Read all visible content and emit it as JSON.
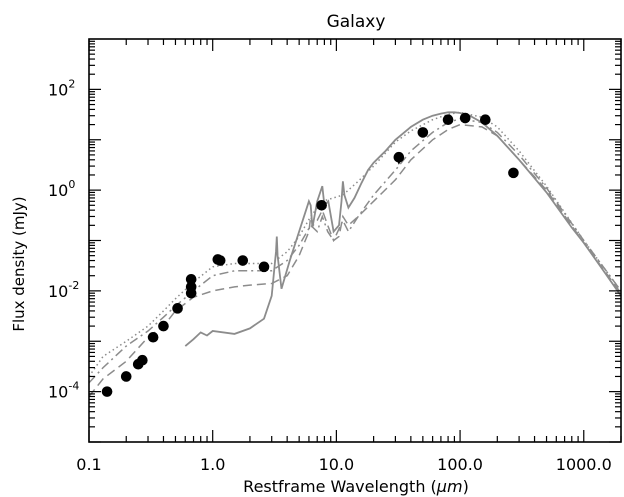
{
  "chart_data": {
    "type": "scatter",
    "title": "Galaxy",
    "xlabel": "Restframe Wavelength (μm)",
    "xlabel_prefix": "Restframe Wavelength (",
    "xlabel_unit": "μm",
    "xlabel_suffix": ")",
    "ylabel": "Flux density (mJy)",
    "xscale": "log",
    "yscale": "log",
    "xlim": [
      0.1,
      2000
    ],
    "ylim": [
      1e-05,
      1000
    ],
    "x_tick_labels": [
      {
        "value": 0.1,
        "label": "0.1"
      },
      {
        "value": 1,
        "label": "1.0"
      },
      {
        "value": 10,
        "label": "10.0"
      },
      {
        "value": 100,
        "label": "100.0"
      },
      {
        "value": 1000,
        "label": "1000.0"
      }
    ],
    "y_tick_labels": [
      {
        "value": 0.0001,
        "base": "10",
        "exp": "-4"
      },
      {
        "value": 0.01,
        "base": "10",
        "exp": "-2"
      },
      {
        "value": 1,
        "base": "10",
        "exp": "0"
      },
      {
        "value": 100,
        "base": "10",
        "exp": "2"
      }
    ],
    "grid": false,
    "legend": "none",
    "points": [
      {
        "x": 0.14,
        "y": 0.0001
      },
      {
        "x": 0.2,
        "y": 0.0002
      },
      {
        "x": 0.25,
        "y": 0.00035
      },
      {
        "x": 0.27,
        "y": 0.00042
      },
      {
        "x": 0.33,
        "y": 0.0012
      },
      {
        "x": 0.4,
        "y": 0.002
      },
      {
        "x": 0.52,
        "y": 0.0045
      },
      {
        "x": 0.67,
        "y": 0.009
      },
      {
        "x": 0.67,
        "y": 0.012
      },
      {
        "x": 0.67,
        "y": 0.017
      },
      {
        "x": 1.1,
        "y": 0.042
      },
      {
        "x": 1.15,
        "y": 0.04
      },
      {
        "x": 1.75,
        "y": 0.04
      },
      {
        "x": 2.6,
        "y": 0.03
      },
      {
        "x": 7.6,
        "y": 0.5
      },
      {
        "x": 32,
        "y": 4.5
      },
      {
        "x": 50,
        "y": 14
      },
      {
        "x": 80,
        "y": 25
      },
      {
        "x": 110,
        "y": 27
      },
      {
        "x": 160,
        "y": 25
      },
      {
        "x": 270,
        "y": 2.2
      }
    ],
    "upper_limits": [
      {
        "x": 32,
        "y": 3.5
      }
    ],
    "series": [
      {
        "style": "solid",
        "x": [
          0.6,
          0.7,
          0.8,
          0.9,
          1.0,
          1.5,
          2.0,
          2.6,
          3.0,
          3.25,
          3.3,
          3.35,
          3.6,
          4.2,
          5.0,
          6.0,
          6.2,
          6.4,
          7.0,
          7.7,
          8.0,
          8.6,
          9.5,
          10.5,
          11.0,
          11.3,
          11.6,
          12.5,
          14,
          16,
          18,
          20,
          25,
          30,
          40,
          50,
          60,
          70,
          80,
          90,
          100,
          120,
          150,
          200,
          300,
          500,
          800,
          1000,
          1500,
          2000
        ],
        "y": [
          0.0008,
          0.0011,
          0.0015,
          0.0013,
          0.0016,
          0.0014,
          0.0018,
          0.0028,
          0.008,
          0.06,
          0.12,
          0.05,
          0.011,
          0.04,
          0.15,
          0.6,
          0.5,
          0.18,
          0.6,
          1.2,
          0.5,
          0.6,
          0.15,
          0.2,
          0.6,
          1.5,
          0.8,
          0.45,
          0.7,
          1.4,
          2.5,
          3.5,
          6,
          10,
          18,
          25,
          30,
          33,
          35,
          35,
          34,
          30,
          22,
          12,
          4,
          0.9,
          0.18,
          0.09,
          0.022,
          0.008
        ]
      },
      {
        "style": "dashed",
        "x": [
          0.1,
          0.13,
          0.2,
          0.3,
          0.4,
          0.5,
          0.7,
          1.0,
          1.5,
          2.0,
          3.0,
          4.0,
          5.0,
          6.0,
          6.2,
          6.5,
          7.0,
          7.7,
          8.5,
          9.5,
          10.5,
          11.3,
          12.5,
          15,
          20,
          30,
          40,
          60,
          80,
          100,
          150,
          200,
          300,
          500,
          1000,
          2000
        ],
        "y": [
          8e-05,
          0.00018,
          0.0004,
          0.0012,
          0.002,
          0.004,
          0.0075,
          0.01,
          0.012,
          0.013,
          0.014,
          0.02,
          0.05,
          0.15,
          0.3,
          0.2,
          0.25,
          0.4,
          0.2,
          0.1,
          0.12,
          0.3,
          0.2,
          0.3,
          0.6,
          1.6,
          4,
          10,
          16,
          20,
          18,
          12,
          4,
          1,
          0.09,
          0.009
        ]
      },
      {
        "style": "dotted",
        "x": [
          0.1,
          0.13,
          0.2,
          0.3,
          0.4,
          0.5,
          0.7,
          1.0,
          1.5,
          2.0,
          3.0,
          4.0,
          5.0,
          6.2,
          7.7,
          11.3,
          15,
          20,
          30,
          40,
          60,
          80,
          100,
          150,
          200,
          300,
          500,
          1000,
          2000
        ],
        "y": [
          0.0002,
          0.0005,
          0.001,
          0.002,
          0.004,
          0.007,
          0.015,
          0.03,
          0.035,
          0.035,
          0.035,
          0.06,
          0.12,
          0.3,
          0.6,
          0.8,
          1.5,
          3,
          9,
          15,
          25,
          32,
          35,
          28,
          18,
          6,
          1.2,
          0.1,
          0.01
        ]
      },
      {
        "style": "dashdot",
        "x": [
          0.1,
          0.13,
          0.2,
          0.3,
          0.4,
          0.5,
          0.7,
          1.0,
          1.5,
          2.0,
          3.0,
          4.0,
          5.0,
          6.2,
          7.0,
          7.7,
          8.5,
          9.5,
          11.3,
          12.5,
          15,
          20,
          30,
          40,
          60,
          80,
          100,
          150,
          200,
          300,
          500,
          1000,
          2000
        ],
        "y": [
          0.00015,
          0.0003,
          0.0008,
          0.0016,
          0.003,
          0.005,
          0.01,
          0.02,
          0.025,
          0.025,
          0.025,
          0.04,
          0.08,
          0.2,
          0.15,
          0.3,
          0.15,
          0.1,
          0.25,
          0.15,
          0.3,
          0.8,
          2.5,
          6,
          14,
          22,
          26,
          22,
          14,
          5,
          1.1,
          0.1,
          0.01
        ]
      }
    ]
  }
}
